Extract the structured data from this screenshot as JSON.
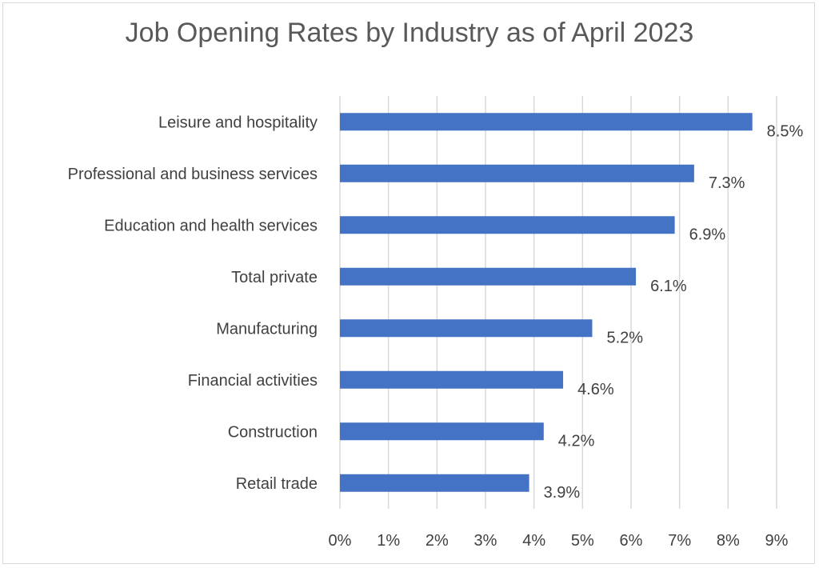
{
  "chart_data": {
    "type": "bar",
    "orientation": "horizontal",
    "title": "Job Opening Rates by Industry as of April 2023",
    "categories": [
      "Leisure and hospitality",
      "Professional and business services",
      "Education and health services",
      "Total private",
      "Manufacturing",
      "Financial activities",
      "Construction",
      "Retail trade"
    ],
    "values": [
      8.5,
      7.3,
      6.9,
      6.1,
      5.2,
      4.6,
      4.2,
      3.9
    ],
    "data_labels": [
      "8.5%",
      "7.3%",
      "6.9%",
      "6.1%",
      "5.2%",
      "4.6%",
      "4.2%",
      "3.9%"
    ],
    "x_ticks": [
      "0%",
      "1%",
      "2%",
      "3%",
      "4%",
      "5%",
      "6%",
      "7%",
      "8%",
      "9%"
    ],
    "xlim": [
      0,
      9
    ],
    "xlabel": "",
    "ylabel": "",
    "grid": "vertical",
    "legend": "none",
    "bar_color": "#4472C4"
  }
}
